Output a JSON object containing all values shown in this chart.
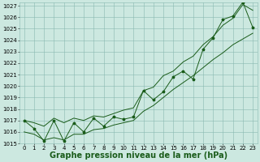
{
  "title": "Graphe pression niveau de la mer (hPa)",
  "x_values": [
    0,
    1,
    2,
    3,
    4,
    5,
    6,
    7,
    8,
    9,
    10,
    11,
    12,
    13,
    14,
    15,
    16,
    17,
    18,
    19,
    20,
    21,
    22,
    23
  ],
  "y_main": [
    1017.0,
    1016.3,
    1015.2,
    1017.0,
    1015.2,
    1016.8,
    1016.0,
    1017.2,
    1016.5,
    1017.3,
    1017.1,
    1017.3,
    1019.6,
    1018.8,
    1019.5,
    1020.8,
    1021.3,
    1020.6,
    1023.2,
    1024.2,
    1025.8,
    1026.1,
    1027.3,
    1025.1
  ],
  "y_low": [
    1016.0,
    1015.8,
    1015.3,
    1015.5,
    1015.3,
    1015.8,
    1015.8,
    1016.2,
    1016.3,
    1016.6,
    1016.8,
    1017.0,
    1017.8,
    1018.3,
    1019.0,
    1019.7,
    1020.3,
    1020.9,
    1021.6,
    1022.3,
    1022.9,
    1023.6,
    1024.1,
    1024.6
  ],
  "y_high": [
    1017.0,
    1016.8,
    1016.5,
    1017.2,
    1016.8,
    1017.2,
    1017.0,
    1017.4,
    1017.3,
    1017.6,
    1017.9,
    1018.1,
    1019.6,
    1019.9,
    1020.9,
    1021.3,
    1022.1,
    1022.6,
    1023.6,
    1024.3,
    1025.3,
    1025.9,
    1027.1,
    1026.6
  ],
  "ylim": [
    1015,
    1027
  ],
  "xlim_min": -0.5,
  "xlim_max": 23.5,
  "bg_color": "#cce8e0",
  "line_color": "#1a5c1a",
  "grid_color": "#88b8b0",
  "title_fontsize": 7,
  "tick_fontsize": 5,
  "marker": "*",
  "markersize": 2.5,
  "linewidth": 0.7
}
